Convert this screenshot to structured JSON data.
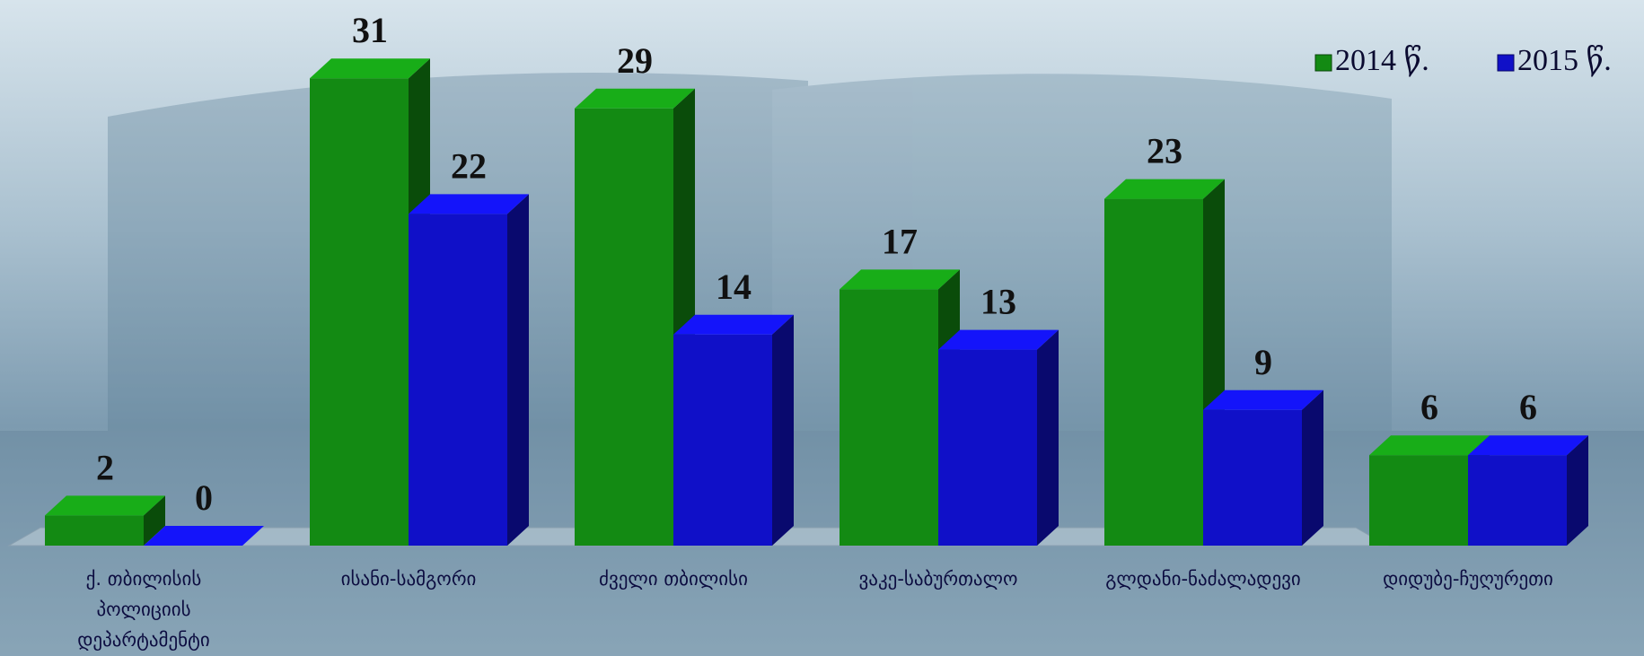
{
  "chart_data": {
    "type": "bar3d",
    "categories": [
      "ქ. თბილისის პოლიციის დეპარტამენტი",
      "ისანი-სამგორი",
      "ძველი თბილისი",
      "ვაკე-საბურთალო",
      "გლდანი-ნაძალადევი",
      "დიდუბე-ჩუღურეთი"
    ],
    "series": [
      {
        "name": "2014 წ.",
        "color": "#138a13",
        "values": [
          2,
          31,
          29,
          17,
          23,
          6
        ]
      },
      {
        "name": "2015 წ.",
        "color": "#1010c8",
        "values": [
          0,
          22,
          14,
          13,
          9,
          6
        ]
      }
    ],
    "legend": "top-right"
  }
}
